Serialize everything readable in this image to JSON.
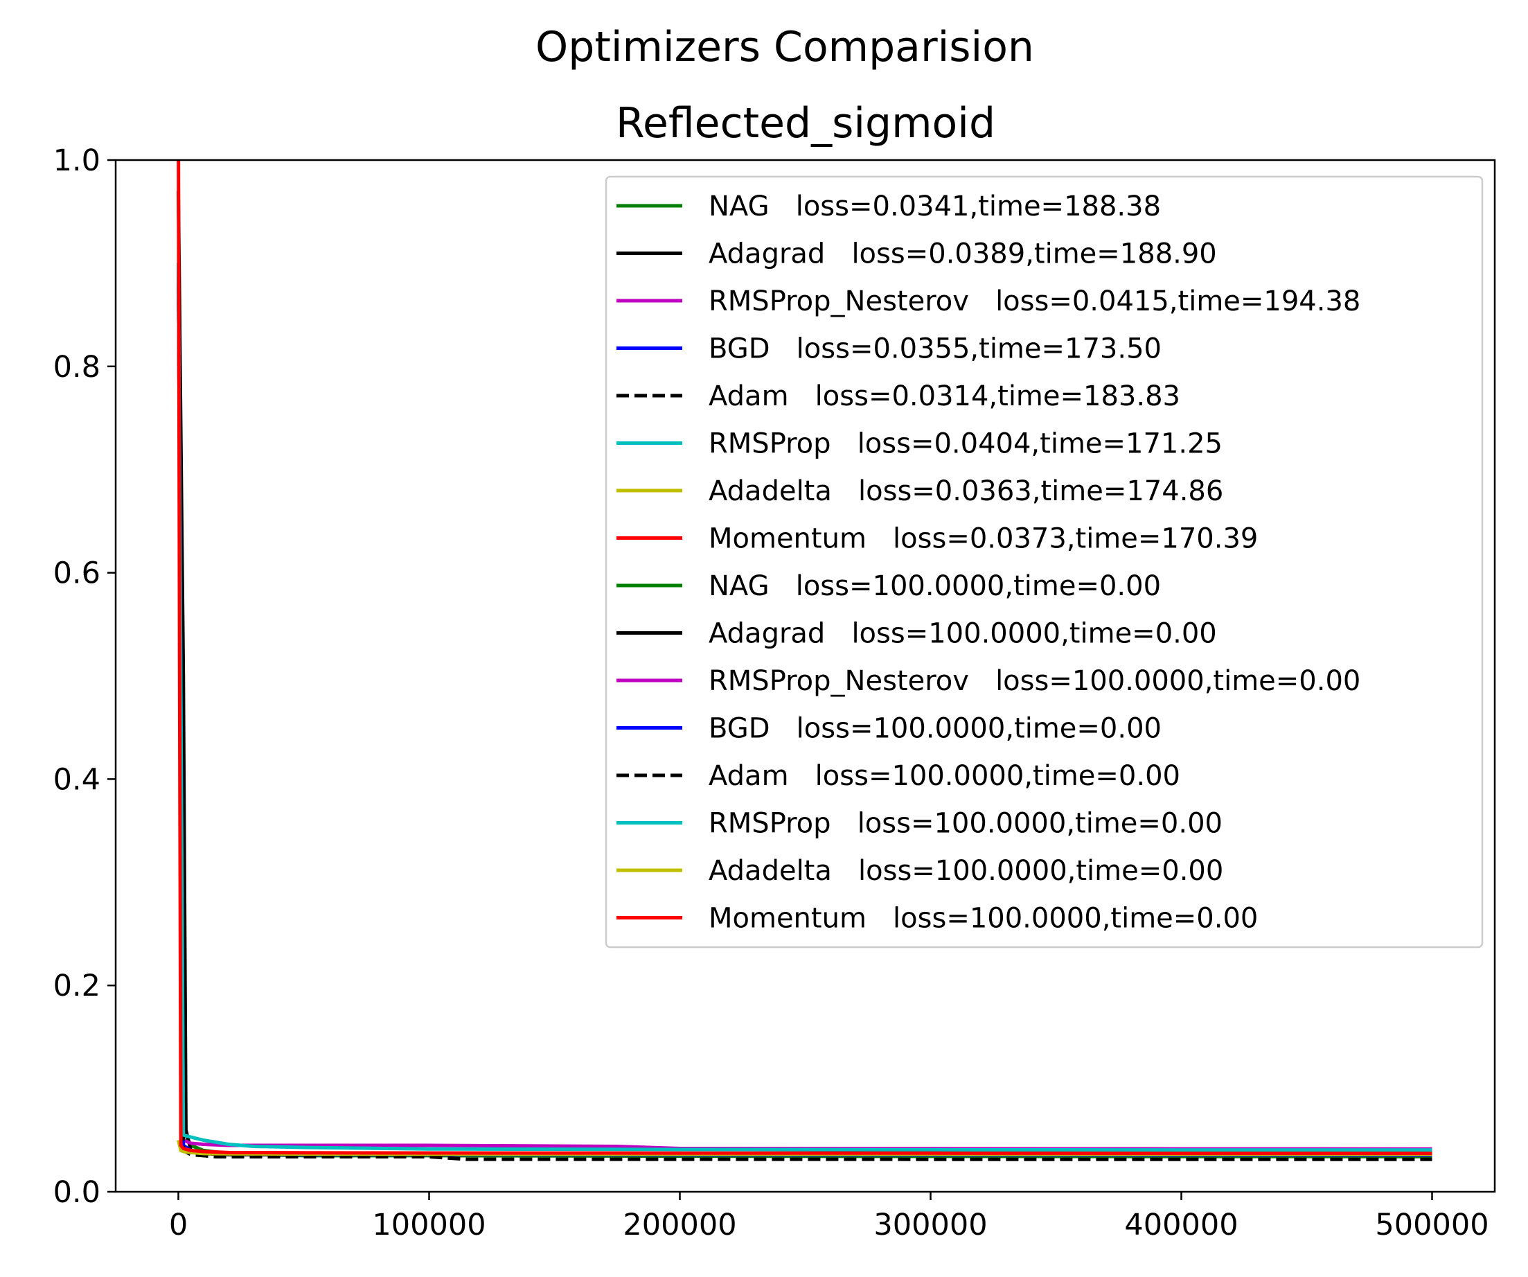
{
  "chart_data": {
    "type": "line",
    "title": "Optimizers Comparision",
    "subtitle": "Reflected_sigmoid",
    "xlabel": "",
    "ylabel": "",
    "xlim": [
      -25000,
      525000
    ],
    "ylim": [
      0.0,
      1.0
    ],
    "xticks": [
      0,
      100000,
      200000,
      300000,
      400000,
      500000
    ],
    "xtick_labels": [
      "0",
      "100000",
      "200000",
      "300000",
      "400000",
      "500000"
    ],
    "yticks": [
      0.0,
      0.2,
      0.4,
      0.6,
      0.8,
      1.0
    ],
    "ytick_labels": [
      "0.0",
      "0.2",
      "0.4",
      "0.6",
      "0.8",
      "1.0"
    ],
    "grid": false,
    "legend_position": "top-right",
    "series": [
      {
        "name": "NAG   loss=0.0341,time=188.38",
        "color": "#008000",
        "dash": "solid",
        "x": [
          0,
          2000,
          5000,
          10000,
          20000,
          50000,
          100000,
          200000,
          300000,
          400000,
          500000
        ],
        "y": [
          0.9,
          0.06,
          0.045,
          0.04,
          0.037,
          0.035,
          0.035,
          0.0345,
          0.0343,
          0.0342,
          0.0341
        ]
      },
      {
        "name": "Adagrad   loss=0.0389,time=188.90",
        "color": "#000000",
        "dash": "solid",
        "x": [
          0,
          2000,
          3000,
          5000,
          10000,
          20000,
          50000,
          100000,
          200000,
          300000,
          400000,
          500000
        ],
        "y": [
          0.97,
          0.5,
          0.06,
          0.04,
          0.037,
          0.036,
          0.036,
          0.036,
          0.037,
          0.038,
          0.0385,
          0.0389
        ]
      },
      {
        "name": "RMSProp_Nesterov   loss=0.0415,time=194.38",
        "color": "#bf00bf",
        "dash": "solid",
        "x": [
          0,
          2000,
          5000,
          10000,
          20000,
          50000,
          100000,
          175000,
          200000,
          300000,
          400000,
          500000
        ],
        "y": [
          0.9,
          0.05,
          0.047,
          0.046,
          0.045,
          0.045,
          0.045,
          0.044,
          0.042,
          0.0418,
          0.0416,
          0.0415
        ]
      },
      {
        "name": "BGD   loss=0.0355,time=173.50",
        "color": "#0000ff",
        "dash": "solid",
        "x": [
          0,
          2000,
          5000,
          10000,
          20000,
          50000,
          100000,
          200000,
          300000,
          400000,
          500000
        ],
        "y": [
          0.9,
          0.045,
          0.04,
          0.038,
          0.037,
          0.036,
          0.036,
          0.0358,
          0.0357,
          0.0356,
          0.0355
        ]
      },
      {
        "name": "Adam   loss=0.0314,time=183.83",
        "color": "#000000",
        "dash": "dashed",
        "x": [
          0,
          2000,
          5000,
          10000,
          15000,
          20000,
          50000,
          100000,
          115000,
          200000,
          300000,
          400000,
          500000
        ],
        "y": [
          0.9,
          0.04,
          0.036,
          0.035,
          0.034,
          0.034,
          0.034,
          0.034,
          0.0315,
          0.0315,
          0.0314,
          0.0314,
          0.0314
        ]
      },
      {
        "name": "RMSProp   loss=0.0404,time=171.25",
        "color": "#00bfbf",
        "dash": "solid",
        "x": [
          0,
          2000,
          5000,
          10000,
          20000,
          30000,
          50000,
          100000,
          200000,
          300000,
          400000,
          500000
        ],
        "y": [
          0.9,
          0.055,
          0.053,
          0.05,
          0.046,
          0.044,
          0.043,
          0.0415,
          0.041,
          0.0407,
          0.0405,
          0.0404
        ]
      },
      {
        "name": "Adadelta   loss=0.0363,time=174.86",
        "color": "#bfbf00",
        "dash": "solid",
        "x": [
          0,
          1000,
          2000,
          5000,
          10000,
          20000,
          50000,
          100000,
          200000,
          300000,
          400000,
          500000
        ],
        "y": [
          0.05,
          0.04,
          0.039,
          0.038,
          0.037,
          0.0368,
          0.0366,
          0.0365,
          0.0364,
          0.0364,
          0.0363,
          0.0363
        ]
      },
      {
        "name": "Momentum   loss=0.0373,time=170.39",
        "color": "#ff0000",
        "dash": "solid",
        "x": [
          0,
          500,
          1000,
          2000,
          5000,
          10000,
          20000,
          50000,
          100000,
          200000,
          300000,
          400000,
          500000
        ],
        "y": [
          1.05,
          0.5,
          0.045,
          0.042,
          0.04,
          0.039,
          0.038,
          0.0378,
          0.0376,
          0.0375,
          0.0374,
          0.0373,
          0.0373
        ]
      },
      {
        "name": "NAG   loss=100.0000,time=0.00",
        "color": "#008000",
        "dash": "solid",
        "x": [],
        "y": []
      },
      {
        "name": "Adagrad   loss=100.0000,time=0.00",
        "color": "#000000",
        "dash": "solid",
        "x": [],
        "y": []
      },
      {
        "name": "RMSProp_Nesterov   loss=100.0000,time=0.00",
        "color": "#bf00bf",
        "dash": "solid",
        "x": [],
        "y": []
      },
      {
        "name": "BGD   loss=100.0000,time=0.00",
        "color": "#0000ff",
        "dash": "solid",
        "x": [],
        "y": []
      },
      {
        "name": "Adam   loss=100.0000,time=0.00",
        "color": "#000000",
        "dash": "dashed",
        "x": [],
        "y": []
      },
      {
        "name": "RMSProp   loss=100.0000,time=0.00",
        "color": "#00bfbf",
        "dash": "solid",
        "x": [],
        "y": []
      },
      {
        "name": "Adadelta   loss=100.0000,time=0.00",
        "color": "#bfbf00",
        "dash": "solid",
        "x": [],
        "y": []
      },
      {
        "name": "Momentum   loss=100.0000,time=0.00",
        "color": "#ff0000",
        "dash": "solid",
        "x": [],
        "y": []
      }
    ]
  }
}
